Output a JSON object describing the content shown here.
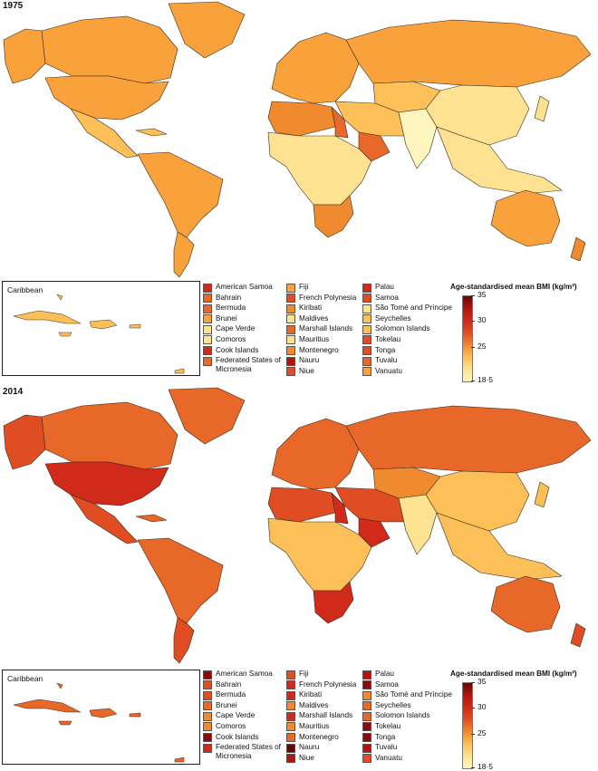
{
  "colors": {
    "c185": "#fff5be",
    "c22": "#fde391",
    "c24": "#fdbf58",
    "c25": "#f9a23c",
    "c26": "#f08a2f",
    "c27": "#e8682a",
    "c28": "#e04d23",
    "c30": "#cf2a1a",
    "c32": "#b3140f",
    "c34": "#8e0a0a",
    "c35": "#660505",
    "border": "#3a2a1a",
    "nodata": "#8a8f9a"
  },
  "panels": [
    {
      "year": "1975",
      "map_region_colors": {
        "north_america": "c25",
        "alaska": "c25",
        "canada": "c25",
        "usa": "c25",
        "greenland": "c25",
        "central_america": "c24",
        "south_america": "c25",
        "argentina": "c25",
        "europe": "c25",
        "russia": "c25",
        "north_africa": "c26",
        "egypt": "c27",
        "middle_east": "c24",
        "gulf": "c27",
        "subsaharan_africa": "c22",
        "southern_africa": "c26",
        "central_asia": "c24",
        "china": "c22",
        "india": "c185",
        "southeast_asia": "c22",
        "japan": "c22",
        "australia": "c25",
        "new_zealand": "c26",
        "caribbean": "c24"
      },
      "legend_columns": [
        [
          {
            "label": "American Samoa",
            "color": "c30"
          },
          {
            "label": "Bahrain",
            "color": "c27"
          },
          {
            "label": "Bermuda",
            "color": "c27"
          },
          {
            "label": "Brunei",
            "color": "c25"
          },
          {
            "label": "Cape Verde",
            "color": "c22"
          },
          {
            "label": "Comoros",
            "color": "c22"
          },
          {
            "label": "Cook Islands",
            "color": "c30"
          },
          {
            "label": "Federated States of Micronesia",
            "color": "c27"
          }
        ],
        [
          {
            "label": "Fiji",
            "color": "c25"
          },
          {
            "label": "French Polynesia",
            "color": "c28"
          },
          {
            "label": "Kiribati",
            "color": "c26"
          },
          {
            "label": "Maldives",
            "color": "c22"
          },
          {
            "label": "Marshall Islands",
            "color": "c27"
          },
          {
            "label": "Mauritius",
            "color": "c22"
          },
          {
            "label": "Montenegro",
            "color": "c26"
          },
          {
            "label": "Nauru",
            "color": "c32"
          },
          {
            "label": "Niue",
            "color": "c28"
          }
        ],
        [
          {
            "label": "Palau",
            "color": "c30"
          },
          {
            "label": "Samoa",
            "color": "c28"
          },
          {
            "label": "São Tomé and Príncipe",
            "color": "c22"
          },
          {
            "label": "Seychelles",
            "color": "c24"
          },
          {
            "label": "Solomon Islands",
            "color": "c24"
          },
          {
            "label": "Tokelau",
            "color": "c28"
          },
          {
            "label": "Tonga",
            "color": "c28"
          },
          {
            "label": "Tuvalu",
            "color": "c27"
          },
          {
            "label": "Vanuatu",
            "color": "c25"
          }
        ]
      ],
      "scale_title": "Age-standardised mean BMI (kg/m²)",
      "inset_label": "Caribbean"
    },
    {
      "year": "2014",
      "map_region_colors": {
        "north_america": "c27",
        "alaska": "c28",
        "canada": "c27",
        "usa": "c30",
        "greenland": "c27",
        "central_america": "c28",
        "south_america": "c27",
        "argentina": "c28",
        "europe": "c27",
        "russia": "c27",
        "north_africa": "c28",
        "egypt": "c30",
        "middle_east": "c28",
        "gulf": "c30",
        "subsaharan_africa": "c24",
        "southern_africa": "c30",
        "central_asia": "c26",
        "china": "c24",
        "india": "c22",
        "southeast_asia": "c24",
        "japan": "c24",
        "australia": "c27",
        "new_zealand": "c28",
        "caribbean": "c27"
      },
      "legend_columns": [
        [
          {
            "label": "American Samoa",
            "color": "c34"
          },
          {
            "label": "Bahrain",
            "color": "c28"
          },
          {
            "label": "Bermuda",
            "color": "c28"
          },
          {
            "label": "Brunei",
            "color": "c27"
          },
          {
            "label": "Cape Verde",
            "color": "c26"
          },
          {
            "label": "Comoros",
            "color": "c26"
          },
          {
            "label": "Cook Islands",
            "color": "c34"
          },
          {
            "label": "Federated States of Micronesia",
            "color": "c30"
          }
        ],
        [
          {
            "label": "Fiji",
            "color": "c28"
          },
          {
            "label": "French Polynesia",
            "color": "c30"
          },
          {
            "label": "Kiribati",
            "color": "c30"
          },
          {
            "label": "Maldives",
            "color": "c26"
          },
          {
            "label": "Marshall Islands",
            "color": "c30"
          },
          {
            "label": "Mauritius",
            "color": "c26"
          },
          {
            "label": "Montenegro",
            "color": "c27"
          },
          {
            "label": "Nauru",
            "color": "c35"
          },
          {
            "label": "Niue",
            "color": "c32"
          }
        ],
        [
          {
            "label": "Palau",
            "color": "c32"
          },
          {
            "label": "Samoa",
            "color": "c34"
          },
          {
            "label": "São Tomé and Príncipe",
            "color": "c26"
          },
          {
            "label": "Seychelles",
            "color": "c27"
          },
          {
            "label": "Solomon Islands",
            "color": "c27"
          },
          {
            "label": "Tokelau",
            "color": "c34"
          },
          {
            "label": "Tonga",
            "color": "c34"
          },
          {
            "label": "Tuvalu",
            "color": "c32"
          },
          {
            "label": "Vanuatu",
            "color": "c28"
          }
        ]
      ],
      "scale_title": "Age-standardised mean BMI (kg/m²)",
      "inset_label": "Caribbean"
    }
  ],
  "scale": {
    "min": 18.5,
    "max": 35,
    "ticks": [
      {
        "value": 35,
        "label": "35"
      },
      {
        "value": 30,
        "label": "30"
      },
      {
        "value": 25,
        "label": "25"
      },
      {
        "value": 18.5,
        "label": "18·5"
      }
    ]
  }
}
